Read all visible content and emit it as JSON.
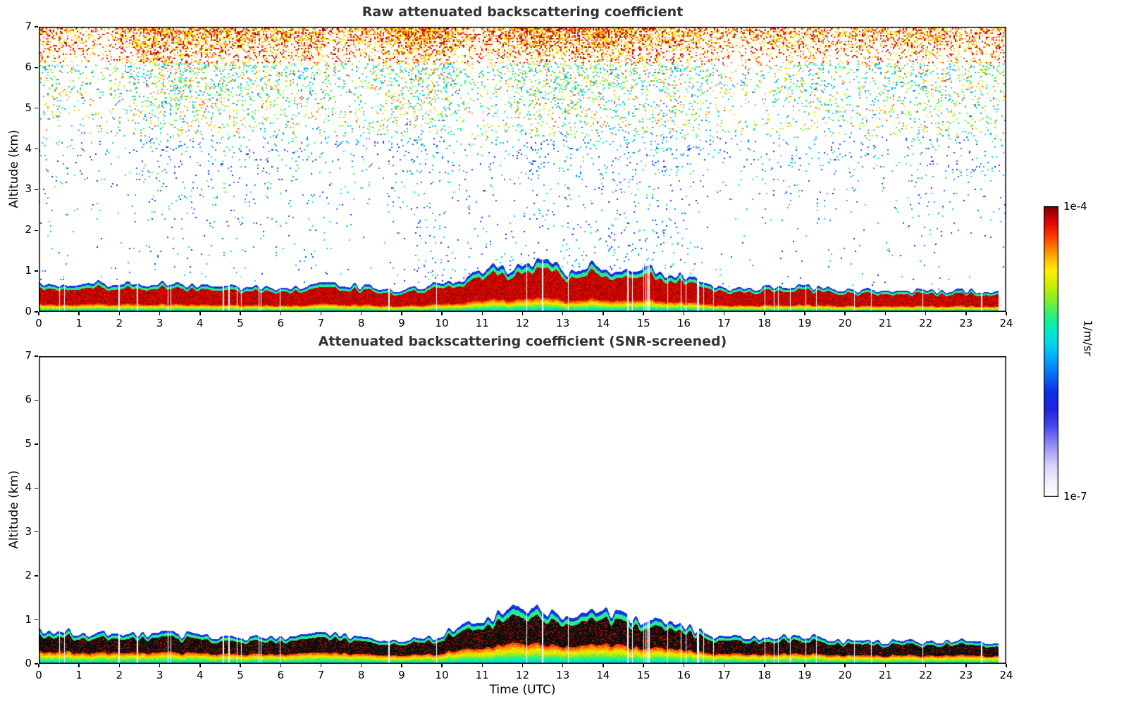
{
  "figure": {
    "xlabel": "Time (UTC)"
  },
  "colorbar": {
    "label": "1/m/sr",
    "scale": "log",
    "top_label": "1e-4",
    "bottom_label": "1e-7",
    "stops": [
      [
        0.0,
        "#ffffff"
      ],
      [
        0.05,
        "#f2f0ff"
      ],
      [
        0.1,
        "#dcd6ff"
      ],
      [
        0.14,
        "#b9b0fa"
      ],
      [
        0.18,
        "#8f8cf5"
      ],
      [
        0.24,
        "#4a4aef"
      ],
      [
        0.3,
        "#2222dd"
      ],
      [
        0.36,
        "#0a2fe8"
      ],
      [
        0.42,
        "#0a6cf5"
      ],
      [
        0.48,
        "#00aaff"
      ],
      [
        0.53,
        "#00d9e8"
      ],
      [
        0.58,
        "#00eebb"
      ],
      [
        0.63,
        "#33ee77"
      ],
      [
        0.68,
        "#88ee22"
      ],
      [
        0.73,
        "#ccee00"
      ],
      [
        0.78,
        "#ffee00"
      ],
      [
        0.83,
        "#ffaa00"
      ],
      [
        0.88,
        "#ff5500"
      ],
      [
        0.93,
        "#ee1100"
      ],
      [
        0.97,
        "#bb0000"
      ],
      [
        1.0,
        "#7a0000"
      ]
    ]
  },
  "chart_data": [
    {
      "type": "heatmap",
      "title": "Raw attenuated backscattering coefficient",
      "xlabel": "",
      "ylabel": "Altitude (km)",
      "xlim": [
        0,
        24
      ],
      "ylim": [
        0,
        7
      ],
      "xticks": [
        0,
        1,
        2,
        3,
        4,
        5,
        6,
        7,
        8,
        9,
        10,
        11,
        12,
        13,
        14,
        15,
        16,
        17,
        18,
        19,
        20,
        21,
        22,
        23,
        24
      ],
      "yticks": [
        0,
        1,
        2,
        3,
        4,
        5,
        6,
        7
      ],
      "grid": false,
      "colorbar_label": "1/m/sr",
      "value_range": [
        "1e-7",
        "1e-4"
      ],
      "style": {
        "background": "#ffffff",
        "core_color": "darkred",
        "core_from": 0.3,
        "warm_bottom": false,
        "noise_speckle": true
      },
      "content": {
        "data_end_hour": 23.8,
        "boundary_layer_top_km": {
          "hours": [
            0,
            1,
            2,
            3,
            4,
            5,
            6,
            7,
            8,
            9,
            10,
            11,
            12,
            13,
            14,
            15,
            16,
            17,
            18,
            19,
            20,
            21,
            22,
            23,
            24
          ],
          "values": [
            0.66,
            0.62,
            0.6,
            0.63,
            0.58,
            0.55,
            0.52,
            0.62,
            0.56,
            0.5,
            0.58,
            0.8,
            0.98,
            0.84,
            0.86,
            0.82,
            0.78,
            0.52,
            0.55,
            0.57,
            0.47,
            0.46,
            0.46,
            0.45,
            0.43
          ]
        },
        "surface_layer": "strong aerosol backscatter near 1e-4 1/m/sr (dark red core) from near surface up to boundary-layer top, cyan-green values close to the ground, thin green/blue cap on top",
        "noise": "random speckle noise above the boundary layer, density and intensity increasing with altitude; dense orange-red noise band near 6.3-7 km, strongest around 8-14 UTC; sparse blue-cyan speckle at low/mid altitudes, enhanced below ~3 km between 10-16 UTC"
      }
    },
    {
      "type": "heatmap",
      "title": "Attenuated backscattering coefficient (SNR-screened)",
      "xlabel": "Time (UTC)",
      "ylabel": "Altitude (km)",
      "xlim": [
        0,
        24
      ],
      "ylim": [
        0,
        7
      ],
      "xticks": [
        0,
        1,
        2,
        3,
        4,
        5,
        6,
        7,
        8,
        9,
        10,
        11,
        12,
        13,
        14,
        15,
        16,
        17,
        18,
        19,
        20,
        21,
        22,
        23,
        24
      ],
      "yticks": [
        0,
        1,
        2,
        3,
        4,
        5,
        6,
        7
      ],
      "grid": false,
      "colorbar_label": "1/m/sr",
      "value_range": [
        "1e-7",
        "1e-4"
      ],
      "style": {
        "background": "#ffffff",
        "core_color": "black",
        "core_from": 0.4,
        "warm_bottom": true,
        "noise_speckle": false
      },
      "content": {
        "data_end_hour": 23.8,
        "boundary_layer_top_km": {
          "hours": [
            0,
            1,
            2,
            3,
            4,
            5,
            6,
            7,
            8,
            9,
            10,
            11,
            12,
            13,
            14,
            15,
            16,
            17,
            18,
            19,
            20,
            21,
            22,
            23,
            24
          ],
          "values": [
            0.66,
            0.62,
            0.6,
            0.63,
            0.58,
            0.55,
            0.52,
            0.62,
            0.56,
            0.5,
            0.58,
            0.8,
            0.98,
            0.84,
            0.86,
            0.82,
            0.78,
            0.52,
            0.55,
            0.57,
            0.47,
            0.46,
            0.46,
            0.45,
            0.43
          ]
        },
        "surface_layer": "saturated (black) core band inside the boundary layer with yellow-orange-red values beneath it and cyan near the ground; thin green/blue cap at layer top; thicker and more structured between 10-16 UTC",
        "noise": "noise removed by SNR screening - white background above the boundary layer"
      }
    }
  ]
}
